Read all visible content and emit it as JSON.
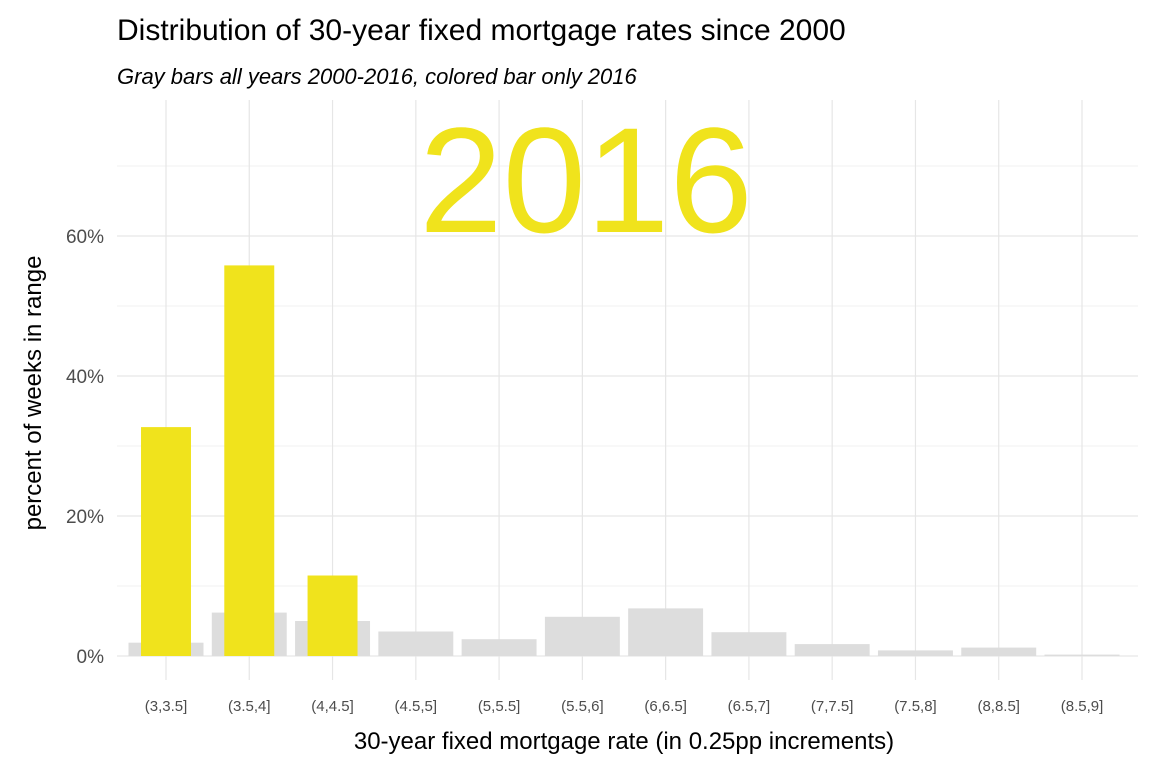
{
  "chart_data": {
    "type": "bar",
    "title": "Distribution of 30-year fixed mortgage rates since 2000",
    "subtitle": "Gray bars all years 2000-2016, colored bar only 2016",
    "annotation": "2016",
    "xlabel": "30-year fixed mortgage rate (in 0.25pp increments)",
    "ylabel": "percent of weeks in range",
    "categories": [
      "(3,3.5]",
      "(3.5,4]",
      "(4,4.5]",
      "(4.5,5]",
      "(5,5.5]",
      "(5.5,6]",
      "(6,6.5]",
      "(6.5,7]",
      "(7,7.5]",
      "(7.5,8]",
      "(8,8.5]",
      "(8.5,9]"
    ],
    "series": [
      {
        "name": "",
        "values": [
          1.9,
          6.2,
          5.0,
          3.5,
          2.4,
          5.6,
          6.8,
          3.4,
          1.7,
          0.8,
          1.2,
          0.2
        ],
        "color": "#dddddd"
      },
      {
        "name": "",
        "values": [
          32.7,
          55.8,
          11.5,
          null,
          null,
          null,
          null,
          null,
          null,
          null,
          null,
          null
        ],
        "color": "#f0e31c"
      }
    ],
    "ylim": [
      0,
      70
    ],
    "yticks": [
      0,
      20,
      40,
      60
    ],
    "ytick_labels": [
      "0%",
      "20%",
      "40%",
      "60%"
    ],
    "grid": true,
    "legend": "none"
  }
}
